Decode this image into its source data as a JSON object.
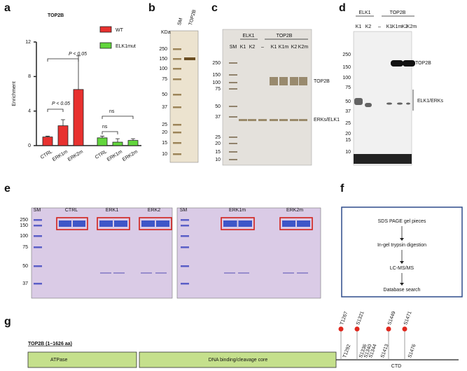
{
  "chart_data": {
    "type": "bar",
    "panel_label": "a",
    "title": "TOP2B",
    "y_label": "Enrichment",
    "categories": [
      "CTRL",
      "ERK1m",
      "ERK2m",
      "CTRL",
      "ERK1m",
      "ERK2m"
    ],
    "series": [
      {
        "name": "WT",
        "color": "#e8312f",
        "values": [
          1,
          2.3,
          6.5,
          null,
          null,
          null
        ],
        "errors": [
          0.1,
          0.7,
          3.9,
          null,
          null,
          null
        ]
      },
      {
        "name": "ELK1mut",
        "color": "#62d63c",
        "values": [
          null,
          null,
          null,
          0.9,
          0.4,
          0.6
        ],
        "errors": [
          null,
          null,
          null,
          0.2,
          0.4,
          0.2
        ]
      }
    ],
    "ylim": [
      0,
      12
    ],
    "yticks": [
      0,
      4,
      8,
      12
    ],
    "annotations": [
      "P < 0.05",
      "P < 0.05",
      "ns",
      "ns"
    ]
  },
  "panel_b": {
    "label": "b",
    "lanes": [
      "SM",
      "TOP2B"
    ],
    "unit": "KDa",
    "markers": [
      250,
      150,
      100,
      75,
      50,
      37,
      25,
      20,
      15,
      10
    ]
  },
  "panel_c": {
    "label": "c",
    "groups": [
      "ELK1",
      "TOP2B"
    ],
    "lanes": [
      "SM",
      "K1",
      "K2",
      "–",
      "K1",
      "K1m",
      "K2",
      "K2m"
    ],
    "markers": [
      250,
      150,
      100,
      75,
      50,
      37,
      25,
      20,
      15,
      10
    ],
    "bands": [
      "TOP2B",
      "ERKs/ELK1"
    ]
  },
  "panel_d": {
    "label": "d",
    "groups": [
      "ELK1",
      "TOP2B"
    ],
    "lanes": [
      "K1",
      "K2",
      "–",
      "K1",
      "K1m",
      "K2",
      "K2m"
    ],
    "markers": [
      250,
      150,
      100,
      75,
      50,
      37,
      25,
      20,
      15,
      10
    ],
    "bands": [
      "TOP2B",
      "ELK1/ERKs"
    ]
  },
  "panel_e": {
    "label": "e",
    "left_lanes": [
      "SM",
      "CTRL",
      "ERK1",
      "ERK2"
    ],
    "right_lanes": [
      "SM",
      "ERK1m",
      "ERK2m"
    ],
    "markers": [
      250,
      150,
      100,
      75,
      50,
      37
    ]
  },
  "panel_f": {
    "label": "f",
    "steps": [
      "SDS PAGE gel pieces",
      "In-gel trypsin digestion",
      "LC-MS/MS",
      "Database search"
    ]
  },
  "panel_g": {
    "label": "g",
    "protein": "TOP2B (1–1626 aa)",
    "domains": [
      "ATPase",
      "DNA binding/cleavage core",
      "CTD"
    ],
    "sites": [
      {
        "label": "T1267",
        "color": "#e0281e"
      },
      {
        "label": "S1321",
        "color": "#e0281e"
      },
      {
        "label": "S1449",
        "color": "#e0281e"
      },
      {
        "label": "S1471",
        "color": "#e0281e"
      },
      {
        "label": "T1292",
        "color": "#2a4d9c"
      },
      {
        "label": "S1336",
        "color": "#2a4d9c"
      },
      {
        "label": "S1340",
        "color": "#2a4d9c"
      },
      {
        "label": "S1344",
        "color": "#2a4d9c"
      },
      {
        "label": "S1413",
        "color": "#2a4d9c"
      },
      {
        "label": "S1476",
        "color": "#2a4d9c"
      }
    ]
  }
}
